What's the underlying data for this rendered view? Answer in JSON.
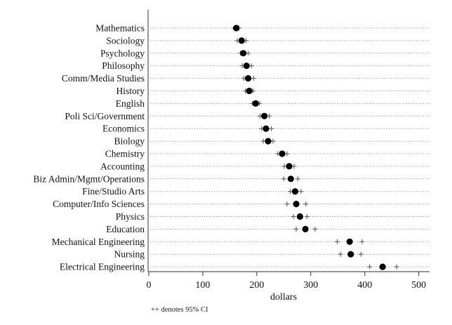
{
  "chart_data": {
    "type": "scatter",
    "subtype": "dot-plot",
    "xlabel": "dollars",
    "ylabel": "",
    "xlim": [
      0,
      520
    ],
    "xticks": [
      0,
      100,
      200,
      300,
      400,
      500
    ],
    "grid": "horizontal dotted",
    "footnote": "++ denotes 95% CI",
    "colors": {
      "point": "#000000",
      "ci": "#666666",
      "grid": "#aaaaaa"
    },
    "categories": [
      "Mathematics",
      "Sociology",
      "Psychology",
      "Philosophy",
      "Comm/Media Studies",
      "History",
      "English",
      "Poli Sci/Government",
      "Economics",
      "Biology",
      "Chemistry",
      "Accounting",
      "Biz Admin/Mgmt/Operations",
      "Fine/Studio Arts",
      "Computer/Info Sciences",
      "Physics",
      "Education",
      "Mechanical Engineering",
      "Nursing",
      "Electrical Engineering"
    ],
    "values": [
      162,
      172,
      175,
      181,
      184,
      186,
      198,
      214,
      217,
      221,
      247,
      260,
      263,
      271,
      273,
      280,
      290,
      372,
      374,
      433
    ],
    "ci_low": [
      158,
      164,
      170,
      173,
      176,
      179,
      192,
      206,
      209,
      212,
      239,
      251,
      250,
      262,
      256,
      268,
      273,
      349,
      355,
      409
    ],
    "ci_high": [
      167,
      180,
      184,
      190,
      194,
      193,
      205,
      223,
      227,
      230,
      256,
      269,
      276,
      282,
      291,
      293,
      308,
      395,
      393,
      459
    ]
  }
}
